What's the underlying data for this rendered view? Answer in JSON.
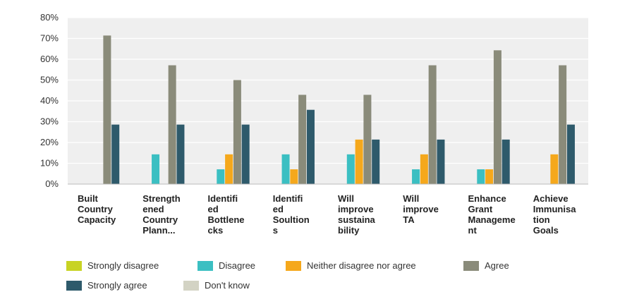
{
  "chart_data": {
    "type": "bar",
    "categories": [
      [
        "Built",
        "Country",
        "Capacity"
      ],
      [
        "Strength",
        "ened",
        "Country",
        "Plann..."
      ],
      [
        "Identifi",
        "ed",
        "Bottlene",
        "cks"
      ],
      [
        "Identifi",
        "ed",
        "Soultion",
        "s"
      ],
      [
        "Will",
        "improve",
        "sustaina",
        "bility"
      ],
      [
        "Will",
        "improve",
        "TA"
      ],
      [
        "Enhance",
        "Grant",
        "Manageme",
        "nt"
      ],
      [
        "Achieve",
        "Immunisa",
        "tion",
        "Goals"
      ]
    ],
    "series": [
      {
        "name": "Strongly disagree",
        "color": "#c8d324",
        "values": [
          0,
          0,
          0,
          0,
          0,
          0,
          0,
          0
        ]
      },
      {
        "name": "Disagree",
        "color": "#3bbfc2",
        "values": [
          0,
          14.3,
          7.1,
          14.3,
          14.3,
          7.1,
          7.1,
          0
        ]
      },
      {
        "name": "Neither disagree nor agree",
        "color": "#f5a81c",
        "values": [
          0,
          0,
          14.3,
          7.1,
          21.4,
          14.3,
          7.1,
          14.3
        ]
      },
      {
        "name": "Agree",
        "color": "#8a8b7a",
        "values": [
          71.4,
          57.1,
          50,
          42.9,
          42.9,
          57.1,
          64.3,
          57.1
        ]
      },
      {
        "name": "Strongly agree",
        "color": "#2e5a6b",
        "values": [
          28.6,
          28.6,
          28.6,
          35.7,
          21.4,
          21.4,
          21.4,
          28.6
        ]
      },
      {
        "name": "Don't know",
        "color": "#d3d3c4",
        "values": [
          0,
          0,
          0,
          0,
          0,
          0,
          0,
          0
        ]
      }
    ],
    "y_ticks": [
      "0%",
      "10%",
      "20%",
      "30%",
      "40%",
      "50%",
      "60%",
      "70%",
      "80%"
    ],
    "ylim": [
      0,
      80
    ],
    "grid": true,
    "legend_position": "bottom"
  }
}
